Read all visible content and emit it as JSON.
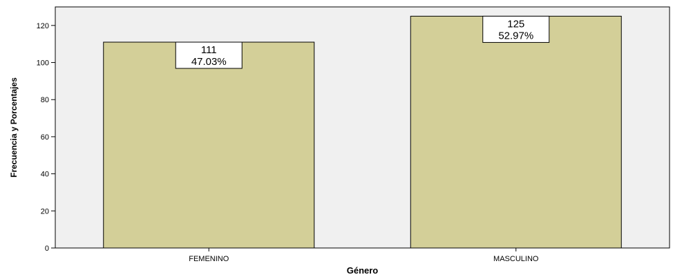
{
  "chart_data": {
    "type": "bar",
    "categories": [
      "FEMENINO",
      "MASCULINO"
    ],
    "values": [
      111,
      125
    ],
    "percent_labels": [
      "47.03%",
      "52.97%"
    ],
    "count_labels": [
      "111",
      "125"
    ],
    "xlabel": "Género",
    "ylabel": "Frecuencia y Porcentajes",
    "ylim": [
      0,
      130
    ],
    "yticks": [
      0,
      20,
      40,
      60,
      80,
      100,
      120
    ],
    "grid": false,
    "legend": "none",
    "colors": {
      "plot_background": "#f0f0f0",
      "bar_fill": "#d3cf98",
      "bar_stroke": "#000000",
      "label_box_fill": "#ffffff",
      "axis": "#000000"
    }
  }
}
